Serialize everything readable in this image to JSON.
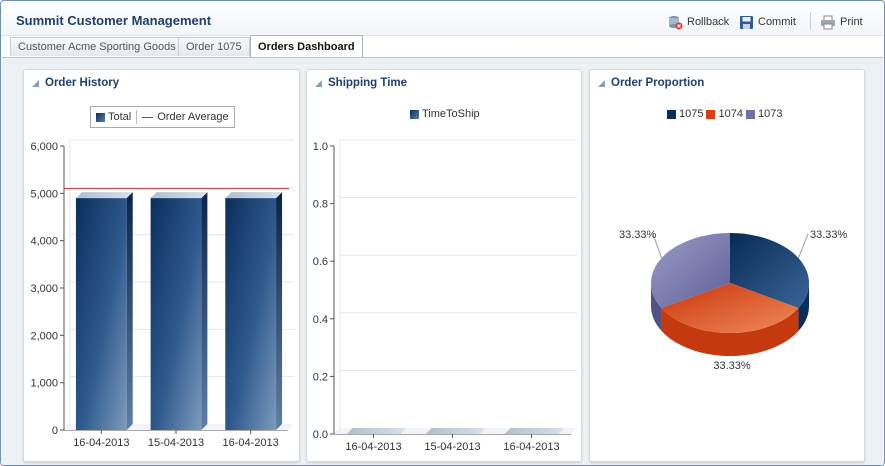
{
  "app": {
    "title": "Summit Customer Management"
  },
  "toolbar": {
    "rollback_label": "Rollback",
    "commit_label": "Commit",
    "print_label": "Print"
  },
  "tabs": [
    {
      "label": "Customer Acme Sporting Goods",
      "active": false
    },
    {
      "label": "Order 1075",
      "active": false
    },
    {
      "label": "Orders Dashboard",
      "active": true
    }
  ],
  "panels": {
    "order_history": {
      "title": "Order History",
      "legend_total": "Total",
      "legend_average": "Order Average"
    },
    "shipping_time": {
      "title": "Shipping Time",
      "legend_series": "TimeToShip"
    },
    "order_proportion": {
      "title": "Order Proportion",
      "legend": [
        "1075",
        "1074",
        "1073"
      ]
    }
  },
  "colors": {
    "navy": "#0b2f5c",
    "orange": "#d9400f",
    "lavender": "#6f70a6",
    "average_line": "#c03030",
    "title_blue": "#1f3f6e"
  },
  "chart_data": [
    {
      "type": "bar",
      "title": "Order History",
      "categories": [
        "16-04-2013",
        "15-04-2013",
        "16-04-2013"
      ],
      "series": [
        {
          "name": "Total",
          "values": [
            4900,
            4900,
            4900
          ]
        }
      ],
      "reference_line": {
        "name": "Order Average",
        "value": 5100
      },
      "yticks": [
        "0",
        "1,000",
        "2,000",
        "3,000",
        "4,000",
        "5,000",
        "6,000"
      ],
      "ylim": [
        0,
        6000
      ],
      "legend": "top"
    },
    {
      "type": "bar",
      "title": "Shipping Time",
      "categories": [
        "16-04-2013",
        "15-04-2013",
        "16-04-2013"
      ],
      "series": [
        {
          "name": "TimeToShip",
          "values": [
            0,
            0,
            0
          ]
        }
      ],
      "yticks": [
        "0.0",
        "0.2",
        "0.4",
        "0.6",
        "0.8",
        "1.0"
      ],
      "ylim": [
        0,
        1.0
      ],
      "legend": "top"
    },
    {
      "type": "pie",
      "title": "Order Proportion",
      "labels": [
        "1075",
        "1074",
        "1073"
      ],
      "values": [
        33.33,
        33.33,
        33.33
      ],
      "data_labels": [
        "33.33%",
        "33.33%",
        "33.33%"
      ],
      "legend": "top"
    }
  ]
}
